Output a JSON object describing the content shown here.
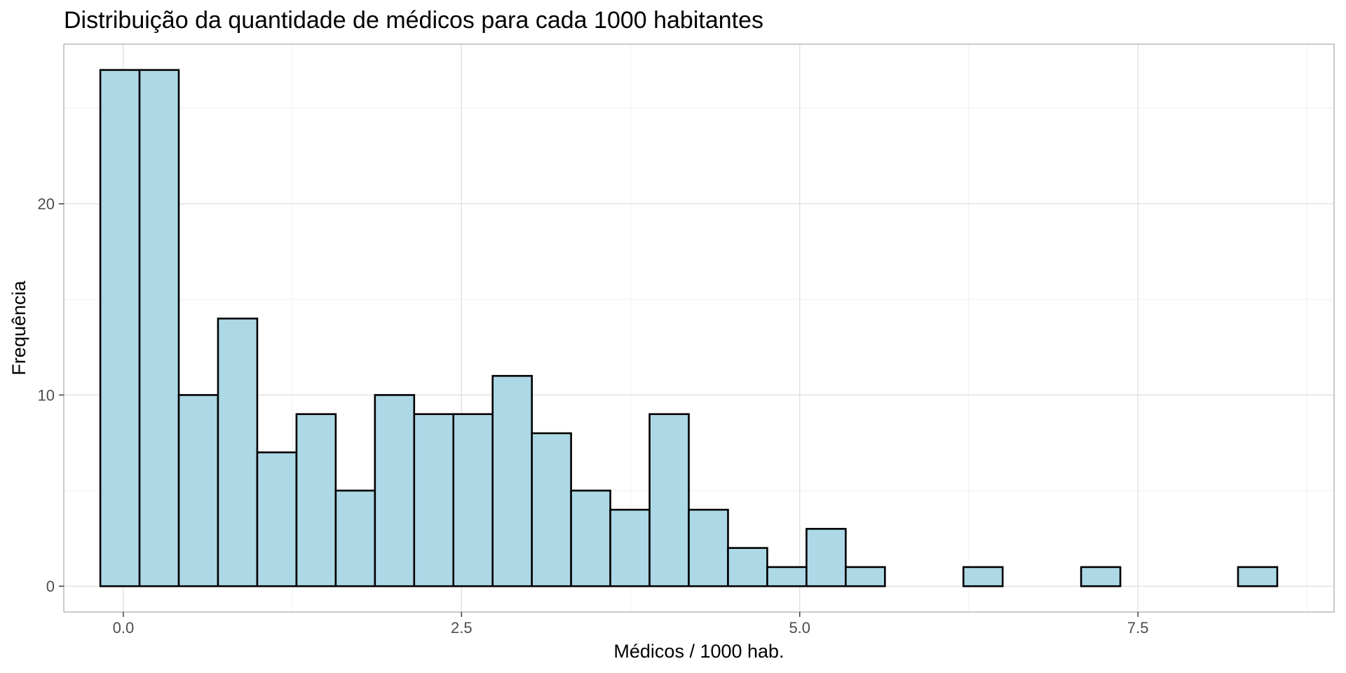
{
  "chart_data": {
    "type": "bar",
    "subtype": "histogram",
    "title": "Distribuição da quantidade de médicos para cada 1000 habitantes",
    "xlabel": "Médicos / 1000 hab.",
    "ylabel": "Frequência",
    "bin_width": 0.29,
    "bin_start": -0.17,
    "counts": [
      27,
      27,
      10,
      14,
      7,
      9,
      5,
      10,
      9,
      9,
      11,
      8,
      5,
      4,
      9,
      4,
      2,
      1,
      3,
      1,
      0,
      0,
      1,
      0,
      0,
      1,
      0,
      0,
      0,
      1
    ],
    "xlim": [
      -0.44,
      8.95
    ],
    "ylim": [
      -1.35,
      28.35
    ],
    "x_ticks": [
      0.0,
      2.5,
      5.0,
      7.5
    ],
    "x_tick_labels": [
      "0.0",
      "2.5",
      "5.0",
      "7.5"
    ],
    "y_ticks": [
      0,
      10,
      20
    ],
    "y_tick_labels": [
      "0",
      "10",
      "20"
    ],
    "bar_fill": "#add8e6",
    "bar_outline": "#000000",
    "grid": true,
    "legend": "none"
  }
}
